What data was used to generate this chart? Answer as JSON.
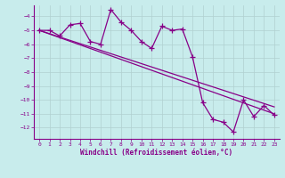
{
  "xlabel": "Windchill (Refroidissement éolien,°C)",
  "xlim": [
    -0.5,
    23.5
  ],
  "ylim": [
    -12.8,
    -3.2
  ],
  "yticks": [
    -4,
    -5,
    -6,
    -7,
    -8,
    -9,
    -10,
    -11,
    -12
  ],
  "xticks": [
    0,
    1,
    2,
    3,
    4,
    5,
    6,
    7,
    8,
    9,
    10,
    11,
    12,
    13,
    14,
    15,
    16,
    17,
    18,
    19,
    20,
    21,
    22,
    23
  ],
  "bg_color": "#c8ecec",
  "grid_color": "#b0d0d0",
  "line_color": "#880088",
  "series1_x": [
    0,
    1,
    2,
    3,
    4,
    5,
    6,
    7,
    8,
    9,
    10,
    11,
    12,
    13,
    14,
    15,
    16,
    17,
    18,
    19,
    20,
    21,
    22,
    23
  ],
  "series1_y": [
    -5.0,
    -5.0,
    -5.4,
    -4.6,
    -4.5,
    -5.8,
    -6.0,
    -3.5,
    -4.4,
    -5.0,
    -5.8,
    -6.3,
    -4.7,
    -5.0,
    -4.9,
    -6.9,
    -10.2,
    -11.4,
    -11.6,
    -12.3,
    -10.0,
    -11.2,
    -10.4,
    -11.1
  ],
  "series2_x": [
    0,
    23
  ],
  "series2_y": [
    -5.0,
    -11.0
  ],
  "series3_x": [
    0,
    23
  ],
  "series3_y": [
    -5.0,
    -10.5
  ]
}
